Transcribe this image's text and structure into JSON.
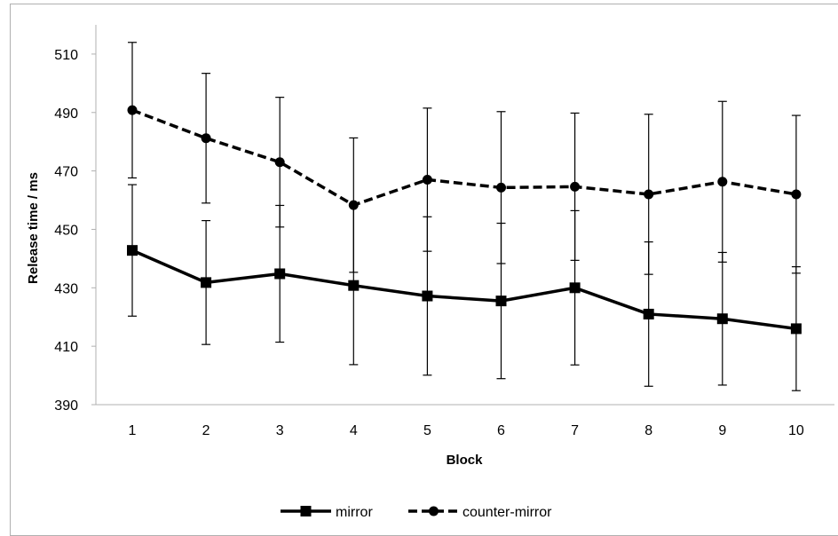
{
  "chart_data": {
    "type": "line",
    "xlabel": "Block",
    "ylabel": "Release time / ms",
    "x": [
      1,
      2,
      3,
      4,
      5,
      6,
      7,
      8,
      9,
      10
    ],
    "ylim": [
      390,
      520
    ],
    "yticks": [
      390,
      410,
      430,
      450,
      470,
      490,
      510
    ],
    "grid": false,
    "legend_position": "bottom",
    "series": [
      {
        "name": "mirror",
        "style": "solid",
        "marker": "square",
        "color": "#000000",
        "values": [
          442.8,
          431.8,
          434.8,
          430.8,
          427.2,
          425.5,
          430.0,
          421.0,
          419.4,
          416.0
        ],
        "error_upper": [
          465.3,
          453.0,
          458.2,
          458.0,
          454.3,
          452.1,
          456.4,
          445.7,
          442.1,
          437.2
        ],
        "error_lower": [
          420.3,
          410.6,
          411.4,
          403.7,
          400.1,
          398.9,
          403.6,
          396.3,
          396.7,
          394.8
        ]
      },
      {
        "name": "counter-mirror",
        "style": "dashed",
        "marker": "circle",
        "color": "#000000",
        "values": [
          490.8,
          481.2,
          473.0,
          458.3,
          467.0,
          464.3,
          464.6,
          462.0,
          466.3,
          462.0
        ],
        "error_upper": [
          514.0,
          503.4,
          495.2,
          481.3,
          491.5,
          490.3,
          489.8,
          489.4,
          493.8,
          489.0
        ],
        "error_lower": [
          467.6,
          459.0,
          450.8,
          435.3,
          442.5,
          438.3,
          439.4,
          434.6,
          438.8,
          435.0
        ]
      }
    ]
  }
}
